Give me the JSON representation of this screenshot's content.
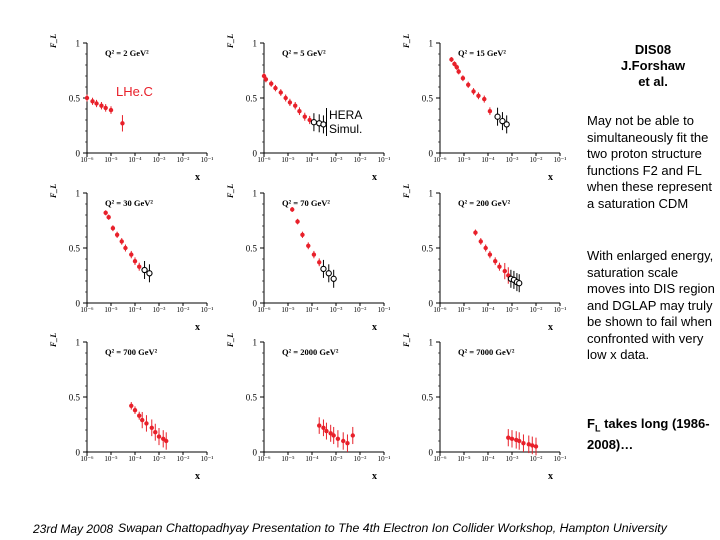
{
  "credit": {
    "line1": "DIS08",
    "line2": "J.Forshaw",
    "line3": "et al."
  },
  "paragraphs": {
    "p1": "May not be able to simultaneously fit the two proton structure functions F2 and FL when these represent a saturation CDM",
    "p2": "With enlarged energy, saturation scale moves into DIS region and DGLAP may truly be shown to fail when confronted with very low x data.",
    "fl_main": "F",
    "fl_sub": "L",
    "fl_rest": " takes long (1986-2008)…"
  },
  "footer": {
    "date": "23rd May 2008",
    "title": "Swapan Chattopadhyay  Presentation to The 4th Electron Ion Collider Workshop, Hampton University"
  },
  "annotations": {
    "lhec": "LHe.C",
    "hera1": "HERA",
    "hera2": "Simul."
  },
  "colors": {
    "lhec": "#e8202a",
    "hera": "#000000",
    "text": "#000000"
  },
  "chart_data": {
    "type": "scatter",
    "panels": [
      {
        "q2_label": "Q² = 2 GeV²",
        "lhec": [
          [
            1e-06,
            0.5
          ],
          [
            1.7e-06,
            0.47
          ],
          [
            2.5e-06,
            0.45
          ],
          [
            4e-06,
            0.43
          ],
          [
            6e-06,
            0.41
          ],
          [
            1e-05,
            0.39
          ],
          [
            3e-05,
            0.27
          ]
        ],
        "hera": []
      },
      {
        "q2_label": "Q² = 5 GeV²",
        "lhec": [
          [
            1e-06,
            0.7
          ],
          [
            1.2e-06,
            0.67
          ],
          [
            2e-06,
            0.63
          ],
          [
            3e-06,
            0.59
          ],
          [
            5e-06,
            0.55
          ],
          [
            8e-06,
            0.5
          ],
          [
            1.2e-05,
            0.46
          ],
          [
            2e-05,
            0.43
          ],
          [
            3e-05,
            0.38
          ],
          [
            5e-05,
            0.33
          ],
          [
            8e-05,
            0.3
          ]
        ],
        "hera": [
          [
            0.00012,
            0.28
          ],
          [
            0.0002,
            0.27
          ],
          [
            0.0003,
            0.26
          ]
        ]
      },
      {
        "q2_label": "Q² = 15 GeV²",
        "lhec": [
          [
            3e-06,
            0.85
          ],
          [
            4e-06,
            0.81
          ],
          [
            5e-06,
            0.78
          ],
          [
            6e-06,
            0.74
          ],
          [
            9e-06,
            0.68
          ],
          [
            1.5e-05,
            0.62
          ],
          [
            2.5e-05,
            0.56
          ],
          [
            4e-05,
            0.52
          ],
          [
            7e-05,
            0.49
          ],
          [
            0.00012,
            0.38
          ]
        ],
        "hera": [
          [
            0.00025,
            0.33
          ],
          [
            0.0004,
            0.29
          ],
          [
            0.0006,
            0.26
          ]
        ]
      },
      {
        "q2_label": "Q² = 30 GeV²",
        "lhec": [
          [
            6e-06,
            0.82
          ],
          [
            8e-06,
            0.78
          ],
          [
            1.2e-05,
            0.68
          ],
          [
            1.8e-05,
            0.62
          ],
          [
            2.8e-05,
            0.56
          ],
          [
            4e-05,
            0.5
          ],
          [
            7e-05,
            0.44
          ],
          [
            0.0001,
            0.38
          ],
          [
            0.00015,
            0.33
          ]
        ],
        "hera": [
          [
            0.00025,
            0.3
          ],
          [
            0.0004,
            0.27
          ]
        ]
      },
      {
        "q2_label": "Q² = 70 GeV²",
        "lhec": [
          [
            1.5e-05,
            0.85
          ],
          [
            2.5e-05,
            0.74
          ],
          [
            4e-05,
            0.62
          ],
          [
            7e-05,
            0.52
          ],
          [
            0.00012,
            0.44
          ],
          [
            0.0002,
            0.37
          ]
        ],
        "hera": [
          [
            0.0003,
            0.31
          ],
          [
            0.0005,
            0.27
          ],
          [
            0.0008,
            0.22
          ]
        ]
      },
      {
        "q2_label": "Q² = 200 GeV²",
        "lhec": [
          [
            3e-05,
            0.64
          ],
          [
            5e-05,
            0.56
          ],
          [
            8e-05,
            0.5
          ],
          [
            0.00012,
            0.44
          ],
          [
            0.0002,
            0.38
          ],
          [
            0.0003,
            0.33
          ],
          [
            0.0005,
            0.29
          ],
          [
            0.0007,
            0.25
          ]
        ],
        "hera": [
          [
            0.0009,
            0.22
          ],
          [
            0.0012,
            0.21
          ],
          [
            0.0016,
            0.19
          ],
          [
            0.002,
            0.18
          ]
        ]
      },
      {
        "q2_label": "Q² = 700 GeV²",
        "lhec": [
          [
            7e-05,
            0.42
          ],
          [
            0.0001,
            0.38
          ],
          [
            0.00015,
            0.33
          ],
          [
            0.0002,
            0.29
          ],
          [
            0.0003,
            0.26
          ],
          [
            0.0005,
            0.22
          ],
          [
            0.0007,
            0.18
          ],
          [
            0.001,
            0.14
          ],
          [
            0.0015,
            0.12
          ],
          [
            0.002,
            0.1
          ]
        ],
        "hera": []
      },
      {
        "q2_label": "Q² = 2000 GeV²",
        "lhec": [
          [
            0.0002,
            0.24
          ],
          [
            0.0003,
            0.22
          ],
          [
            0.0004,
            0.19
          ],
          [
            0.0006,
            0.17
          ],
          [
            0.0008,
            0.15
          ],
          [
            0.0012,
            0.12
          ],
          [
            0.002,
            0.1
          ],
          [
            0.003,
            0.08
          ],
          [
            0.005,
            0.15
          ]
        ],
        "hera": []
      },
      {
        "q2_label": "Q² = 7000 GeV²",
        "lhec": [
          [
            0.0007,
            0.13
          ],
          [
            0.001,
            0.12
          ],
          [
            0.0015,
            0.11
          ],
          [
            0.002,
            0.1
          ],
          [
            0.003,
            0.08
          ],
          [
            0.005,
            0.07
          ],
          [
            0.007,
            0.06
          ],
          [
            0.01,
            0.05
          ]
        ],
        "hera": []
      }
    ],
    "x_ticks": [
      "10⁻⁶",
      "10⁻⁵",
      "10⁻⁴",
      "10⁻³",
      "10⁻²",
      "10⁻¹"
    ],
    "xlim": [
      1e-06,
      0.1
    ],
    "ylim": [
      0,
      1
    ],
    "y_ticks": [
      "0",
      "0.5",
      "1"
    ],
    "xlabel": "x",
    "ylabel": "F_L"
  }
}
